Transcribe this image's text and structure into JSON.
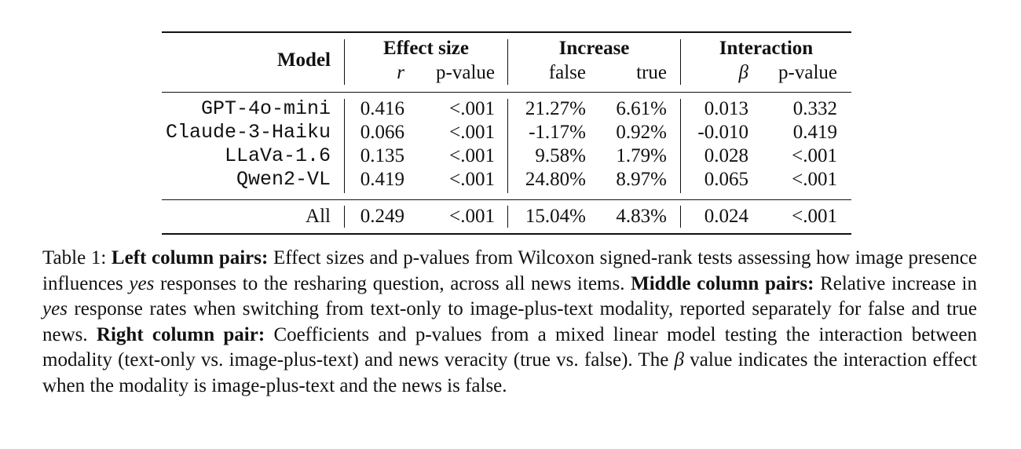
{
  "table": {
    "header": {
      "model": "Model",
      "groups": [
        "Effect size",
        "Increase",
        "Interaction"
      ],
      "subcolumns": [
        "r",
        "p-value",
        "false",
        "true",
        "β",
        "p-value"
      ]
    },
    "rows": [
      {
        "model": "GPT-4o-mini",
        "r": "0.416",
        "p": "<.001",
        "false": "21.27%",
        "true": "6.61%",
        "beta": "0.013",
        "p2": "0.332"
      },
      {
        "model": "Claude-3-Haiku",
        "r": "0.066",
        "p": "<.001",
        "false": "-1.17%",
        "true": "0.92%",
        "beta": "-0.010",
        "p2": "0.419"
      },
      {
        "model": "LLaVa-1.6",
        "r": "0.135",
        "p": "<.001",
        "false": "9.58%",
        "true": "1.79%",
        "beta": "0.028",
        "p2": "<.001"
      },
      {
        "model": "Qwen2-VL",
        "r": "0.419",
        "p": "<.001",
        "false": "24.80%",
        "true": "8.97%",
        "beta": "0.065",
        "p2": "<.001"
      }
    ],
    "total": {
      "model": "All",
      "r": "0.249",
      "p": "<.001",
      "false": "15.04%",
      "true": "4.83%",
      "beta": "0.024",
      "p2": "<.001"
    }
  },
  "caption": {
    "label": "Table 1:",
    "left_heading": "Left column pairs:",
    "left_text_a": "Effect sizes and p-values from Wilcoxon signed-rank tests assessing how image presence influences",
    "left_em": "yes",
    "left_text_b": "responses to the resharing question, across all news items.",
    "middle_heading": "Middle column pairs:",
    "middle_text_a": "Relative increase in",
    "middle_em": "yes",
    "middle_text_b": "response rates when switching from text-only to image-plus-text modality, reported separately for false and true news.",
    "right_heading": "Right column pair:",
    "right_text_a": "Coefficients and p-values from a mixed linear model testing the interaction between modality (text-only vs. image-plus-text) and news veracity (true vs. false). The",
    "right_beta": "β",
    "right_text_b": "value indicates the interaction effect when the modality is image-plus-text and the news is false."
  }
}
